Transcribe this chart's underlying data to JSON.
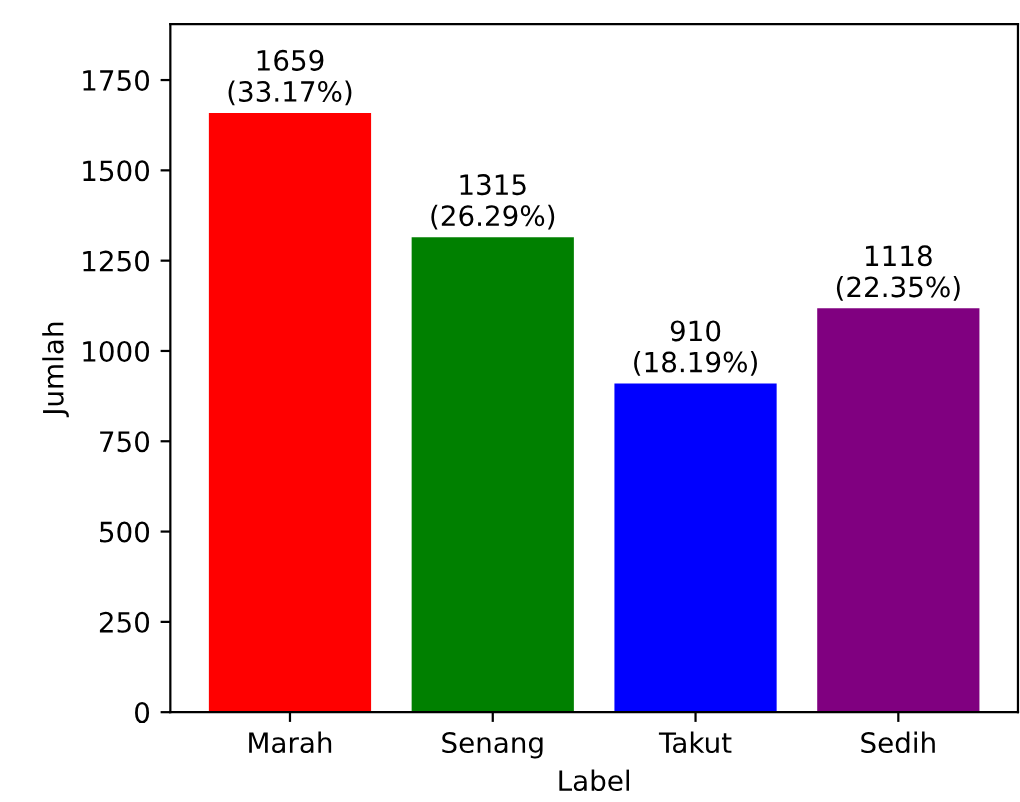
{
  "chart_data": {
    "type": "bar",
    "xlabel": "Label",
    "ylabel": "Jumlah",
    "categories": [
      "Marah",
      "Senang",
      "Takut",
      "Sedih"
    ],
    "values": [
      1659,
      1315,
      910,
      1118
    ],
    "colors": [
      "#ff0000",
      "#008000",
      "#0000ff",
      "#800080"
    ],
    "value_labels": [
      "1659\n(33.17%)",
      "1315\n(26.29%)",
      "910\n(18.19%)",
      "1118\n(22.35%)"
    ],
    "ylim": [
      0,
      1905
    ],
    "yticks": [
      0,
      250,
      500,
      750,
      1000,
      1250,
      1500,
      1750
    ],
    "grid": false
  }
}
